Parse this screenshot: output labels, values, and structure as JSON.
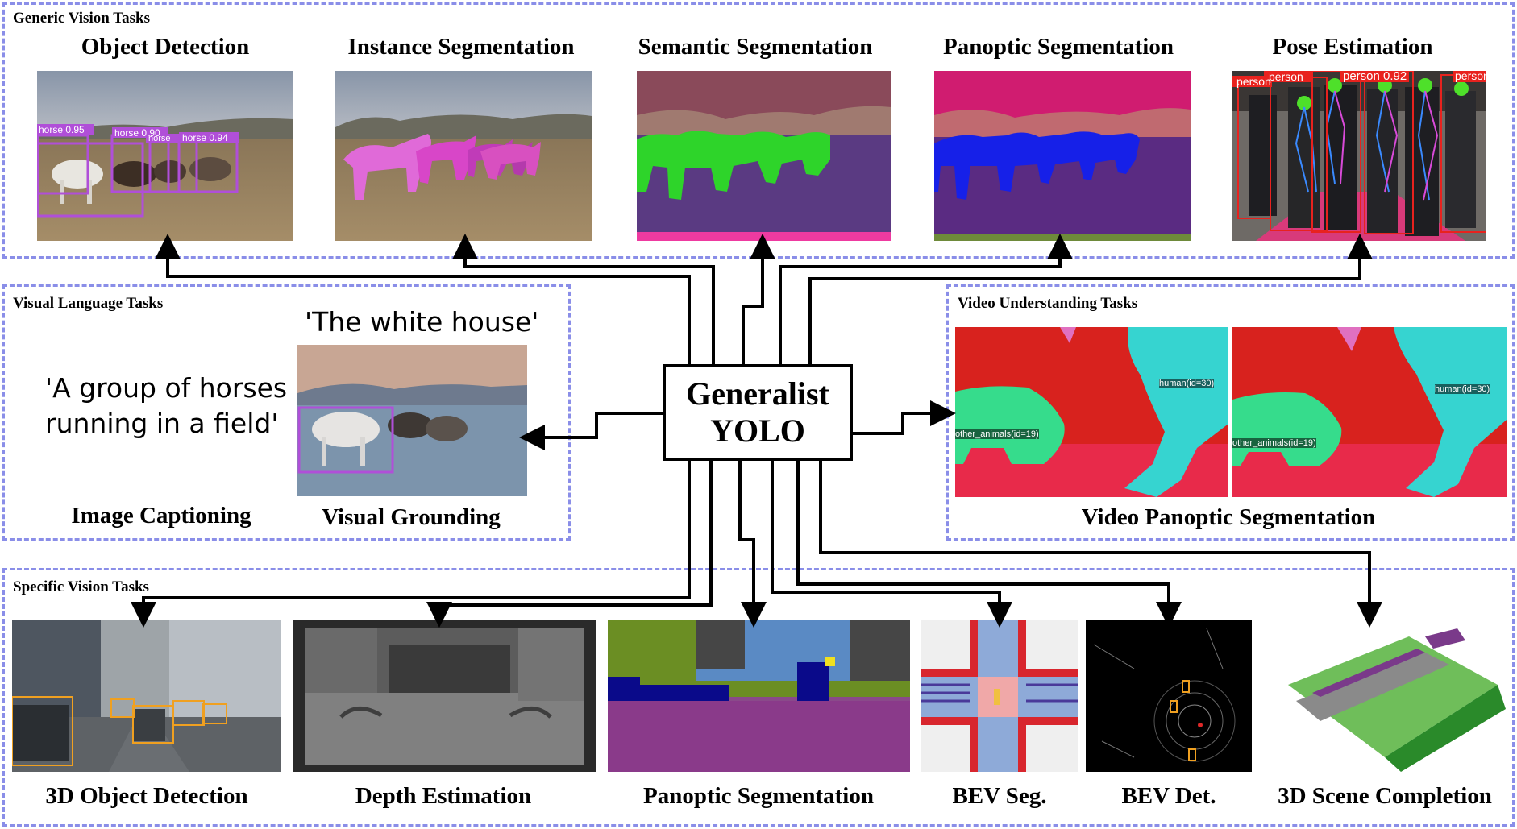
{
  "center": {
    "line1": "Generalist",
    "line2": "YOLO"
  },
  "sections": {
    "generic": {
      "title": "Generic Vision Tasks"
    },
    "visual_language": {
      "title": "Visual Language Tasks"
    },
    "video": {
      "title": "Video Understanding Tasks"
    },
    "specific": {
      "title": "Specific Vision Tasks"
    }
  },
  "generic_tasks": [
    {
      "label": "Object Detection"
    },
    {
      "label": "Instance Segmentation"
    },
    {
      "label": "Semantic Segmentation"
    },
    {
      "label": "Panoptic Segmentation"
    },
    {
      "label": "Pose Estimation"
    }
  ],
  "od_labels": [
    "horse 0.95",
    "horse 0.90",
    "horse",
    "horse 0.94"
  ],
  "pose_labels": [
    "person",
    "person",
    "person 0.92",
    "person"
  ],
  "vl": {
    "caption_quote_line1": "'A group of horses",
    "caption_quote_line2": "running in a field'",
    "grounding_quote": "'The white house'",
    "caption_label": "Image Captioning",
    "grounding_label": "Visual Grounding"
  },
  "video": {
    "label": "Video Panoptic Segmentation",
    "human_label": "human(id=30)",
    "animal_label": "other_animals(id=19)"
  },
  "specific_tasks": [
    {
      "label": "3D Object Detection"
    },
    {
      "label": "Depth Estimation"
    },
    {
      "label": "Panoptic Segmentation"
    },
    {
      "label": "BEV Seg."
    },
    {
      "label": "BEV Det."
    },
    {
      "label": "3D Scene Completion"
    }
  ],
  "colors": {
    "border": "#8a8ee8",
    "arrow": "#000000"
  }
}
